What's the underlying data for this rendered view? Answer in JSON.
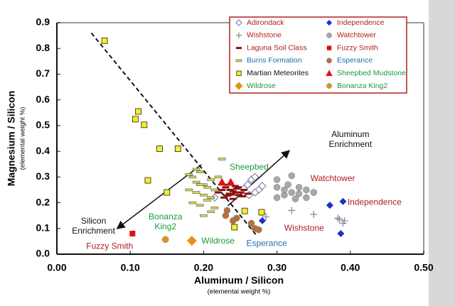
{
  "chart_data": {
    "type": "scatter",
    "x_label": "Aluminum / Silicon",
    "x_sublabel": "(elemental weight %)",
    "y_label": "Magnesium / Silicon",
    "y_sublabel": "(elemental weight %)",
    "xlim": [
      0,
      0.5
    ],
    "ylim": [
      0,
      0.9
    ],
    "xticks": [
      {
        "value": 0,
        "label": "0.00"
      },
      {
        "value": 0.1,
        "label": "0.10"
      },
      {
        "value": 0.2,
        "label": "0.20"
      },
      {
        "value": 0.3,
        "label": "0.30"
      },
      {
        "value": 0.4,
        "label": "0.40"
      },
      {
        "value": 0.5,
        "label": "0.50"
      }
    ],
    "yticks": [
      {
        "value": 0,
        "label": "0.0"
      },
      0.1,
      0.2,
      0.3,
      0.4,
      0.5,
      0.6,
      0.7,
      0.8,
      0.9
    ],
    "grid": false,
    "legend": "upper right",
    "series": [
      {
        "name": "Adirondack",
        "marker": "diamond-open",
        "color": "#8a86a8",
        "text_color": "#b02020",
        "x": [
          0.215,
          0.26,
          0.265,
          0.27,
          0.275,
          0.28,
          0.27,
          0.262,
          0.255
        ],
        "y": [
          0.22,
          0.27,
          0.29,
          0.3,
          0.25,
          0.265,
          0.24,
          0.23,
          0.255
        ]
      },
      {
        "name": "Independence",
        "marker": "diamond",
        "color": "#1c2fc8",
        "text_color": "#b02020",
        "x": [
          0.372,
          0.39,
          0.387,
          0.28
        ],
        "y": [
          0.19,
          0.205,
          0.08,
          0.13
        ]
      },
      {
        "name": "Wishstone",
        "marker": "plus",
        "color": "#8c8c9c",
        "text_color": "#b02020",
        "x": [
          0.28,
          0.285,
          0.32,
          0.35,
          0.385,
          0.39,
          0.383,
          0.392
        ],
        "y": [
          0.16,
          0.145,
          0.17,
          0.155,
          0.135,
          0.12,
          0.14,
          0.13
        ]
      },
      {
        "name": "Watchtower",
        "marker": "circle",
        "color": "#a8a8a8",
        "text_color": "#b02020",
        "x": [
          0.3,
          0.32,
          0.3,
          0.31,
          0.31,
          0.32,
          0.33,
          0.33,
          0.34,
          0.3,
          0.325,
          0.34,
          0.35,
          0.315
        ],
        "y": [
          0.29,
          0.305,
          0.26,
          0.23,
          0.25,
          0.24,
          0.235,
          0.26,
          0.22,
          0.22,
          0.215,
          0.25,
          0.24,
          0.27
        ]
      },
      {
        "name": "Laguna Soil Class",
        "marker": "dash",
        "color": "#8a1010",
        "text_color": "#b02020",
        "x": [
          0.22,
          0.225,
          0.23,
          0.235,
          0.24,
          0.245,
          0.25,
          0.255,
          0.26,
          0.228,
          0.233,
          0.238,
          0.243,
          0.248,
          0.253,
          0.232,
          0.24,
          0.247,
          0.236,
          0.244
        ],
        "y": [
          0.24,
          0.25,
          0.26,
          0.235,
          0.245,
          0.255,
          0.24,
          0.25,
          0.235,
          0.22,
          0.228,
          0.232,
          0.265,
          0.23,
          0.225,
          0.27,
          0.215,
          0.26,
          0.25,
          0.24
        ]
      },
      {
        "name": "Fuzzy Smith",
        "marker": "square",
        "color": "#e01010",
        "text_color": "#b02020",
        "x": [
          0.103
        ],
        "y": [
          0.08
        ]
      },
      {
        "name": "Burns Formation",
        "marker": "dash",
        "color": "#d6d850",
        "edgecolor": "#555",
        "text_color": "#1f6fb0",
        "x": [
          0.18,
          0.185,
          0.19,
          0.195,
          0.2,
          0.205,
          0.21,
          0.215,
          0.19,
          0.2,
          0.21,
          0.185,
          0.195,
          0.205,
          0.215,
          0.22,
          0.19,
          0.2,
          0.18,
          0.21,
          0.225,
          0.195
        ],
        "y": [
          0.31,
          0.3,
          0.28,
          0.32,
          0.27,
          0.26,
          0.29,
          0.25,
          0.24,
          0.23,
          0.22,
          0.2,
          0.19,
          0.21,
          0.18,
          0.3,
          0.33,
          0.15,
          0.25,
          0.165,
          0.37,
          0.27
        ]
      },
      {
        "name": "Esperance",
        "marker": "circle",
        "color": "#b8703a",
        "text_color": "#1f6fb0",
        "x": [
          0.23,
          0.24,
          0.245,
          0.265,
          0.27,
          0.275,
          0.232
        ],
        "y": [
          0.15,
          0.13,
          0.14,
          0.12,
          0.1,
          0.095,
          0.17
        ]
      },
      {
        "name": "Martian Meteorites",
        "marker": "square",
        "color": "#f4ee28",
        "edgecolor": "#222",
        "text_color": "#111111",
        "x": [
          0.065,
          0.111,
          0.107,
          0.119,
          0.14,
          0.165,
          0.124,
          0.15,
          0.256,
          0.242,
          0.279
        ],
        "y": [
          0.83,
          0.555,
          0.525,
          0.503,
          0.41,
          0.41,
          0.287,
          0.24,
          0.168,
          0.105,
          0.163
        ]
      },
      {
        "name": "Sheepbed Mudstone",
        "marker": "triangle",
        "color": "#e01010",
        "text_color": "#1a9a3a",
        "x": [
          0.225,
          0.237
        ],
        "y": [
          0.28,
          0.28
        ]
      },
      {
        "name": "Wildrose",
        "marker": "diamond",
        "color": "#e8901a",
        "text_color": "#1a9a3a",
        "x": [
          0.184
        ],
        "y": [
          0.052
        ]
      },
      {
        "name": "Bonanza King2",
        "marker": "circle",
        "color": "#e8901a",
        "text_color": "#1a9a3a",
        "x": [
          0.148
        ],
        "y": [
          0.057
        ]
      }
    ],
    "reference_lines": [
      {
        "style": "dashed",
        "x": [
          0.047,
          0.271
        ],
        "y": [
          0.86,
          0.077
        ]
      },
      {
        "style": "arrow",
        "x": [
          0.197,
          0.082
        ],
        "y": [
          0.348,
          0.099
        ]
      },
      {
        "style": "arrow",
        "x": [
          0.233,
          0.317
        ],
        "y": [
          0.188,
          0.403
        ]
      }
    ],
    "annotations": [
      {
        "text": [
          "Aluminum",
          "Enrichment"
        ],
        "x": 0.4,
        "y": 0.445,
        "color": "#111111",
        "align": "middle"
      },
      {
        "text": [
          "Silicon",
          "Enrichment"
        ],
        "x": 0.05,
        "y": 0.108,
        "color": "#111111",
        "align": "middle"
      },
      {
        "text": [
          "Sheepbed"
        ],
        "x": 0.262,
        "y": 0.337,
        "color": "#1a9a3a",
        "align": "middle"
      },
      {
        "text": [
          "Watchtower"
        ],
        "x": 0.376,
        "y": 0.293,
        "color": "#b02020",
        "align": "middle"
      },
      {
        "text": [
          "Independence"
        ],
        "x": 0.433,
        "y": 0.2,
        "color": "#b02020",
        "align": "middle"
      },
      {
        "text": [
          "Wishstone"
        ],
        "x": 0.337,
        "y": 0.1,
        "color": "#b02020",
        "align": "middle"
      },
      {
        "text": [
          "Esperance"
        ],
        "x": 0.286,
        "y": 0.041,
        "color": "#1f6fb0",
        "align": "middle"
      },
      {
        "text": [
          "Wildrose"
        ],
        "x": 0.197,
        "y": 0.05,
        "color": "#1a9a3a",
        "align": "start"
      },
      {
        "text": [
          "Bonanza",
          "King2"
        ],
        "x": 0.148,
        "y": 0.125,
        "color": "#1a9a3a",
        "align": "middle"
      },
      {
        "text": [
          "Fuzzy Smith"
        ],
        "x": 0.072,
        "y": 0.03,
        "color": "#b02020",
        "align": "middle"
      }
    ]
  }
}
